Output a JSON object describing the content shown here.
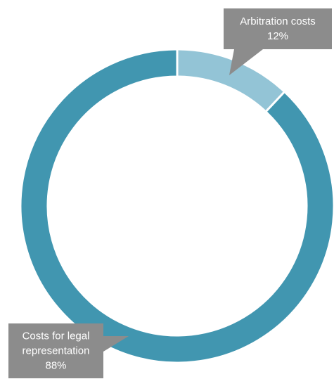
{
  "chart_data": {
    "type": "pie",
    "subtype": "donut",
    "title": "",
    "legend": "none",
    "slices": [
      {
        "label_lines": [
          "Arbitration costs"
        ],
        "value": 12,
        "value_text": "12%",
        "color": "#93c4d6"
      },
      {
        "label_lines": [
          "Costs for legal",
          "representation"
        ],
        "value": 88,
        "value_text": "88%",
        "color": "#4196b0"
      }
    ],
    "callout_color": "#8c8c8c"
  }
}
